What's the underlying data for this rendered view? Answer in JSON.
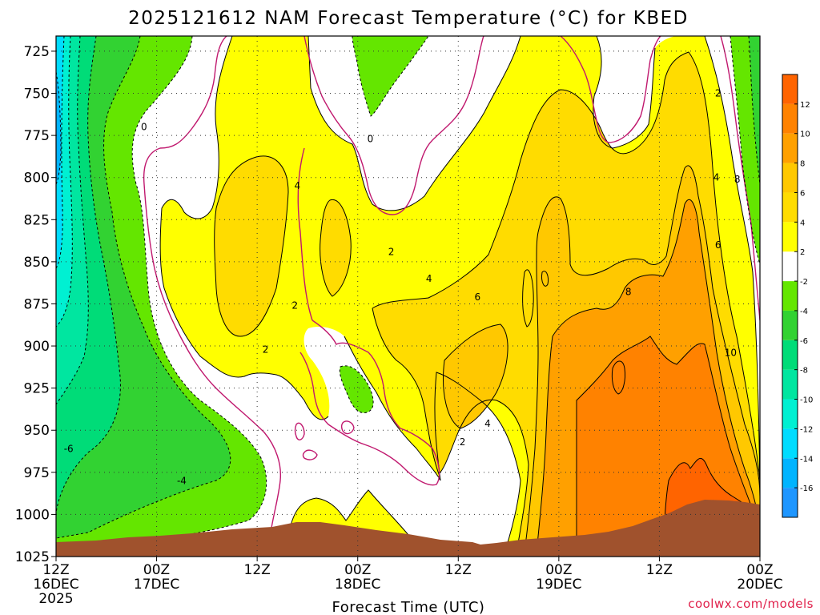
{
  "chart_data": {
    "type": "heatmap",
    "title": "2025121612 NAM Forecast Temperature (°C) for KBED",
    "xlabel": "Forecast Time (UTC)",
    "ylabel": "",
    "x_ticks": [
      {
        "hour": 0,
        "lines": [
          "12Z",
          "16DEC",
          "2025"
        ]
      },
      {
        "hour": 12,
        "lines": [
          "00Z",
          "17DEC"
        ]
      },
      {
        "hour": 24,
        "lines": [
          "12Z"
        ]
      },
      {
        "hour": 36,
        "lines": [
          "00Z",
          "18DEC"
        ]
      },
      {
        "hour": 48,
        "lines": [
          "12Z"
        ]
      },
      {
        "hour": 60,
        "lines": [
          "00Z",
          "19DEC"
        ]
      },
      {
        "hour": 72,
        "lines": [
          "12Z"
        ]
      },
      {
        "hour": 84,
        "lines": [
          "00Z",
          "20DEC"
        ]
      }
    ],
    "x_range_hours": [
      0,
      84
    ],
    "y_ticks": [
      725,
      750,
      775,
      800,
      825,
      850,
      875,
      900,
      925,
      950,
      975,
      1000,
      1025
    ],
    "y_range_hpa": [
      716,
      1025
    ],
    "y_inverted": true,
    "grid": true,
    "colorbar": {
      "levels": [
        -18,
        -16,
        -14,
        -12,
        -10,
        -8,
        -6,
        -4,
        -2,
        2,
        4,
        6,
        8,
        10,
        12,
        14
      ],
      "labels": [
        "-16",
        "-14",
        "-12",
        "-10",
        "-8",
        "-6",
        "-4",
        "-2",
        "2",
        "4",
        "6",
        "8",
        "10",
        "12"
      ],
      "colors": [
        "#1e96ff",
        "#00b4ff",
        "#00dcff",
        "#00f0d2",
        "#00e6a0",
        "#00dc78",
        "#32d232",
        "#64e600",
        "#ffffff",
        "#ffff00",
        "#ffdc00",
        "#ffc800",
        "#ffa000",
        "#ff8200",
        "#ff6400"
      ],
      "placement": "right"
    },
    "contour_labels": [
      {
        "text": "0",
        "hour": 10.5,
        "p": 770
      },
      {
        "text": "0",
        "hour": 37.5,
        "p": 777
      },
      {
        "text": "2",
        "hour": 79.0,
        "p": 750
      },
      {
        "text": "2",
        "hour": 40.0,
        "p": 844
      },
      {
        "text": "2",
        "hour": 28.5,
        "p": 876
      },
      {
        "text": "2",
        "hour": 25.0,
        "p": 902
      },
      {
        "text": "2",
        "hour": 48.5,
        "p": 957
      },
      {
        "text": "4",
        "hour": 28.8,
        "p": 805
      },
      {
        "text": "4",
        "hour": 44.5,
        "p": 860
      },
      {
        "text": "4",
        "hour": 51.5,
        "p": 946
      },
      {
        "text": "4",
        "hour": 78.8,
        "p": 800
      },
      {
        "text": "6",
        "hour": 50.3,
        "p": 871
      },
      {
        "text": "6",
        "hour": 79.0,
        "p": 840
      },
      {
        "text": "8",
        "hour": 81.3,
        "p": 801
      },
      {
        "text": "8",
        "hour": 68.3,
        "p": 868
      },
      {
        "text": "10",
        "hour": 80.5,
        "p": 904
      },
      {
        "text": "-4",
        "hour": 15.0,
        "p": 980
      },
      {
        "text": "-6",
        "hour": 1.5,
        "p": 961
      }
    ],
    "terrain_color": "#a0522d"
  },
  "credit": "coolwx.com/models"
}
